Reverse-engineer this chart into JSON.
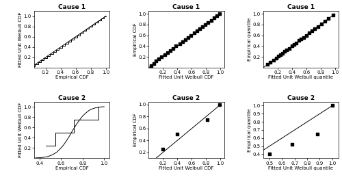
{
  "title_cause1": "Cause 1",
  "title_cause2": "Cause 2",
  "xlabel_ecdf": "Empirical CDF",
  "ylabel_fitted_cdf": "Fitted Unit Weibull CDF",
  "xlabel_fitted_cdf": "Fitted Unit Weibull CDF",
  "ylabel_ecdf": "Empirical CDF",
  "xlabel_fitted_quantile": "Fitted Unit Weibull quantile",
  "ylabel_empirical_quantile": "Empirical quantile",
  "ylabel_pp1": "Fitted Unit Weibull CDF",
  "c1_emp_cdf": [
    0.04,
    0.08,
    0.12,
    0.16,
    0.2,
    0.24,
    0.28,
    0.32,
    0.36,
    0.4,
    0.44,
    0.48,
    0.52,
    0.56,
    0.6,
    0.64,
    0.68,
    0.72,
    0.76,
    0.8,
    0.84,
    0.88,
    0.92,
    0.96,
    1.0
  ],
  "c1_fit_cdf": [
    0.03,
    0.07,
    0.1,
    0.14,
    0.18,
    0.22,
    0.26,
    0.3,
    0.34,
    0.38,
    0.43,
    0.47,
    0.51,
    0.55,
    0.59,
    0.63,
    0.67,
    0.71,
    0.75,
    0.79,
    0.83,
    0.87,
    0.91,
    0.95,
    0.99
  ],
  "c1_raw_sorted": [
    0.06,
    0.1,
    0.14,
    0.18,
    0.21,
    0.24,
    0.27,
    0.3,
    0.33,
    0.36,
    0.4,
    0.43,
    0.46,
    0.5,
    0.53,
    0.56,
    0.6,
    0.64,
    0.68,
    0.72,
    0.76,
    0.81,
    0.86,
    0.91,
    0.97
  ],
  "c2_raw_sorted": [
    0.46,
    0.55,
    0.72,
    0.95
  ],
  "c2_emp_cdf": [
    0.25,
    0.5,
    0.75,
    1.0
  ],
  "c2_fit_cdf": [
    0.2,
    0.4,
    0.82,
    0.99
  ],
  "c2_fit_q": [
    0.5,
    0.68,
    0.88,
    1.0
  ],
  "c2_emp_q": [
    0.4,
    0.52,
    0.65,
    1.0
  ],
  "c2_curve_x": [
    0.35,
    0.38,
    0.41,
    0.44,
    0.47,
    0.5,
    0.53,
    0.56,
    0.59,
    0.62,
    0.65,
    0.68,
    0.71,
    0.74,
    0.77,
    0.8,
    0.83,
    0.86,
    0.89,
    0.92,
    0.95,
    0.98,
    1.0
  ],
  "c2_curve_y": [
    0.0,
    0.01,
    0.01,
    0.02,
    0.03,
    0.05,
    0.08,
    0.12,
    0.18,
    0.25,
    0.34,
    0.44,
    0.55,
    0.65,
    0.74,
    0.82,
    0.88,
    0.93,
    0.96,
    0.98,
    0.99,
    1.0,
    1.0
  ]
}
